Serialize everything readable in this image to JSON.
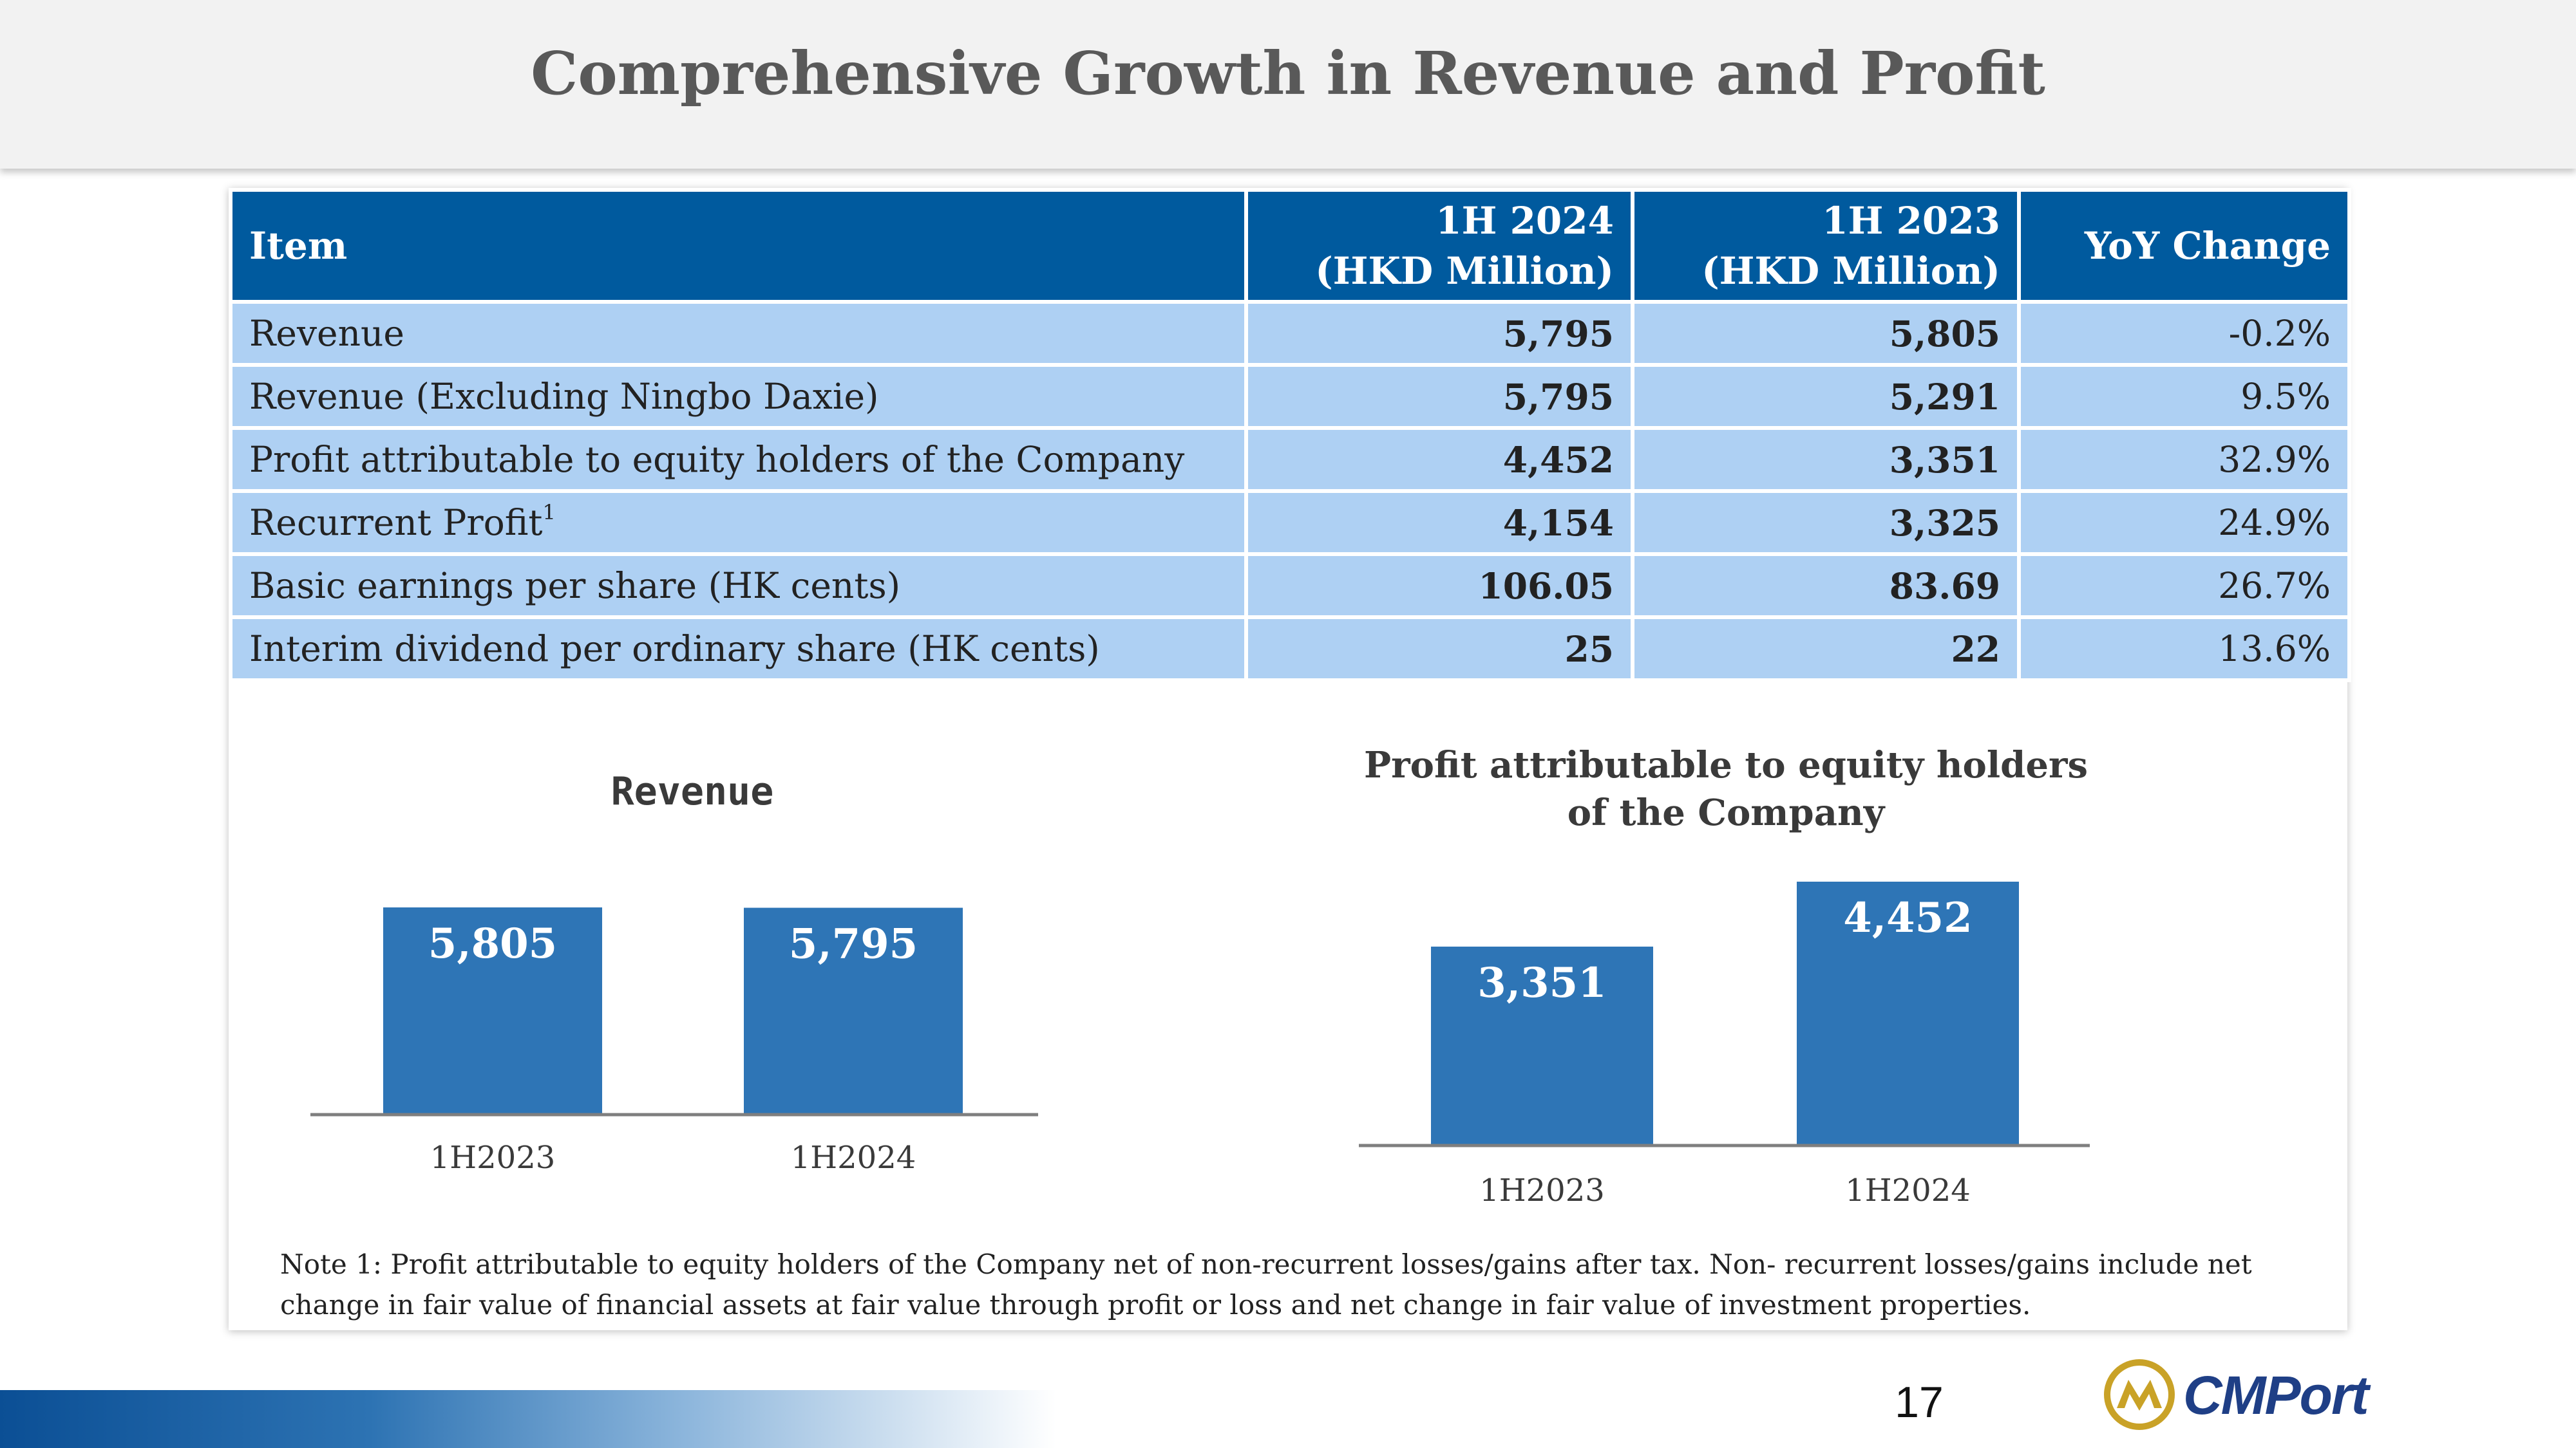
{
  "title": "Comprehensive Growth in Revenue and Profit",
  "table": {
    "headers": [
      {
        "line1": "Item",
        "line2": ""
      },
      {
        "line1": "1H 2024",
        "line2": "(HKD Million)"
      },
      {
        "line1": "1H 2023",
        "line2": "(HKD Million)"
      },
      {
        "line1": "YoY Change",
        "line2": ""
      }
    ],
    "rows": [
      {
        "item": "Revenue",
        "note": "",
        "h2024": "5,795",
        "h2023": "5,805",
        "yoy": "-0.2%"
      },
      {
        "item": "Revenue (Excluding Ningbo Daxie)",
        "note": "",
        "h2024": "5,795",
        "h2023": "5,291",
        "yoy": "9.5%"
      },
      {
        "item": "Profit attributable to equity holders of the Company",
        "note": "",
        "h2024": "4,452",
        "h2023": "3,351",
        "yoy": "32.9%"
      },
      {
        "item": "Recurrent Profit",
        "note": "1",
        "h2024": "4,154",
        "h2023": "3,325",
        "yoy": "24.9%"
      },
      {
        "item": "Basic earnings per share (HK cents)",
        "note": "",
        "h2024": "106.05",
        "h2023": "83.69",
        "yoy": "26.7%"
      },
      {
        "item": "Interim dividend per ordinary share (HK cents)",
        "note": "",
        "h2024": "25",
        "h2023": "22",
        "yoy": "13.6%"
      }
    ]
  },
  "chart_data": [
    {
      "type": "bar",
      "title": "Revenue",
      "categories": [
        "1H2023",
        "1H2024"
      ],
      "values": [
        5805,
        5795
      ],
      "value_labels": [
        "5,805",
        "5,795"
      ],
      "ylim": [
        0,
        5805
      ],
      "grid": false,
      "color": "#2e75b6"
    },
    {
      "type": "bar",
      "title": "Profit attributable to equity holders of the Company",
      "categories": [
        "1H2023",
        "1H2024"
      ],
      "values": [
        3351,
        4452
      ],
      "value_labels": [
        "3,351",
        "4,452"
      ],
      "ylim": [
        0,
        4452
      ],
      "grid": false,
      "color": "#2e75b6"
    }
  ],
  "footnote": "Note 1: Profit attributable to equity holders of the Company net of non-recurrent losses/gains after tax. Non- recurrent losses/gains include net change in fair value of financial assets at fair value through profit or loss and net change in fair value of investment properties.",
  "page_number": "17",
  "logo": {
    "text": "CMPort",
    "icon": "cmport-logo-icon"
  },
  "colors": {
    "header_blue": "#005a9e",
    "row_blue": "#aed0f3",
    "bar_blue": "#2e75b6",
    "logo_gold": "#c9a227",
    "logo_navy": "#1f3f86"
  }
}
